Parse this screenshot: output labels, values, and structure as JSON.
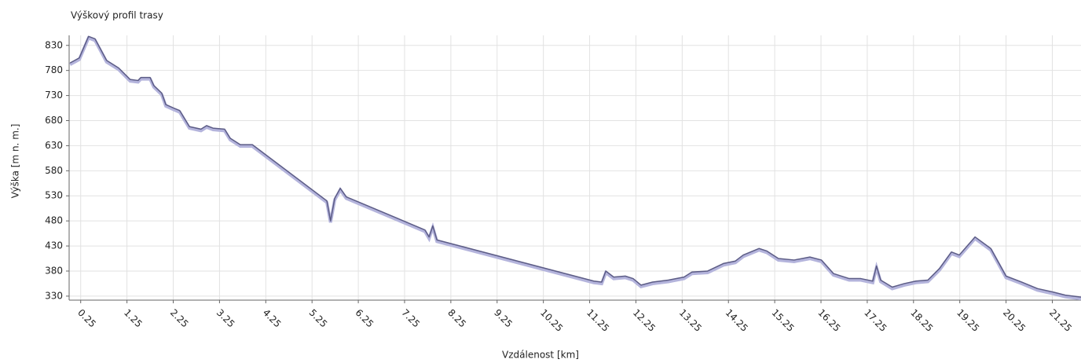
{
  "chart_data": {
    "type": "line",
    "title": "Výškový profil trasy",
    "x_label": "Vzdálenost [km]",
    "y_label": "Výška [m n. m.]",
    "color": "#5c5c86",
    "grid": true,
    "x": [
      0.02,
      0.22,
      0.42,
      0.56,
      0.81,
      1.07,
      1.32,
      1.49,
      1.55,
      1.75,
      1.83,
      2.0,
      2.09,
      2.26,
      2.39,
      2.6,
      2.85,
      2.97,
      3.11,
      3.36,
      3.48,
      3.7,
      3.96,
      5.57,
      5.65,
      5.74,
      5.86,
      5.99,
      7.69,
      7.78,
      7.86,
      7.95,
      11.34,
      11.51,
      11.6,
      11.77,
      12.02,
      12.19,
      12.36,
      12.61,
      12.95,
      13.29,
      13.46,
      13.8,
      14.14,
      14.4,
      14.57,
      14.91,
      15.08,
      15.33,
      15.67,
      16.01,
      16.26,
      16.52,
      16.86,
      17.11,
      17.37,
      17.45,
      17.54,
      17.79,
      18.05,
      18.3,
      18.56,
      18.81,
      19.07,
      19.24,
      19.58,
      19.92,
      20.25,
      20.59,
      20.93,
      21.27,
      21.53,
      21.87
    ],
    "values": [
      795,
      805,
      848,
      843,
      800,
      785,
      762,
      760,
      766,
      766,
      750,
      735,
      712,
      705,
      700,
      668,
      663,
      670,
      665,
      663,
      645,
      632,
      632,
      520,
      480,
      525,
      545,
      528,
      462,
      448,
      470,
      442,
      360,
      358,
      380,
      368,
      370,
      365,
      352,
      358,
      362,
      368,
      378,
      380,
      395,
      400,
      412,
      425,
      420,
      405,
      402,
      408,
      402,
      375,
      365,
      365,
      360,
      390,
      362,
      348,
      355,
      360,
      362,
      385,
      418,
      412,
      448,
      425,
      370,
      358,
      345,
      338,
      332,
      328
    ],
    "xlim": [
      0,
      21.87
    ],
    "xticks": [
      0.25,
      1.25,
      2.25,
      3.25,
      4.25,
      5.25,
      6.25,
      7.25,
      8.25,
      9.25,
      10.25,
      11.25,
      12.25,
      13.25,
      14.25,
      15.25,
      16.25,
      17.25,
      18.25,
      19.25,
      20.25,
      21.25
    ],
    "ylim": [
      322,
      850
    ],
    "yticks": [
      330,
      380,
      430,
      480,
      530,
      580,
      630,
      680,
      730,
      780,
      830
    ]
  }
}
